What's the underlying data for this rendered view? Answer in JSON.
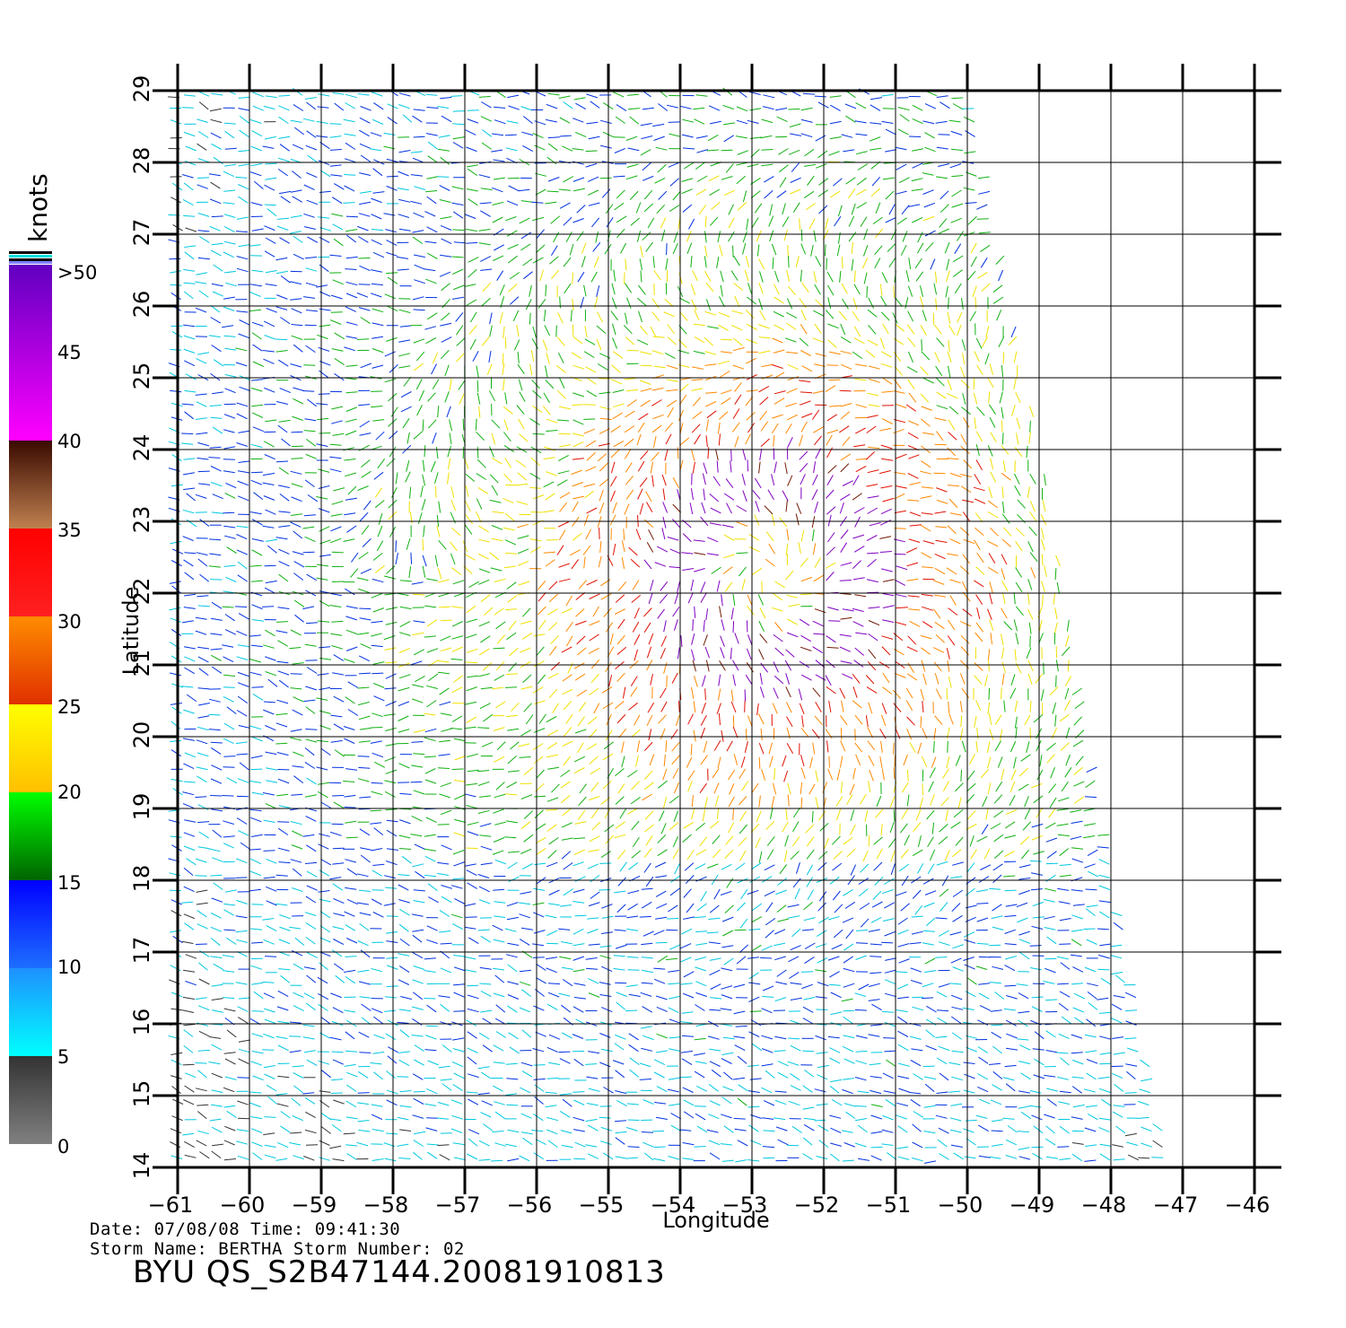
{
  "colorbar": {
    "unit": "knots",
    "labels": [
      ">50",
      "45",
      "40",
      "35",
      "30",
      "25",
      "20",
      "15",
      "10",
      "5",
      "0"
    ],
    "stops": [
      {
        "from": 0,
        "to": 5,
        "top": "#333333",
        "bottom": "#808080"
      },
      {
        "from": 5,
        "to": 10,
        "top": "#1e90ff",
        "bottom": "#00ffff"
      },
      {
        "from": 10,
        "to": 15,
        "top": "#0000ff",
        "bottom": "#1e6fff"
      },
      {
        "from": 15,
        "to": 20,
        "top": "#00ff00",
        "bottom": "#006400"
      },
      {
        "from": 20,
        "to": 25,
        "top": "#ffff00",
        "bottom": "#ffc000"
      },
      {
        "from": 25,
        "to": 30,
        "top": "#ff8c00",
        "bottom": "#e03000"
      },
      {
        "from": 30,
        "to": 35,
        "top": "#ff0000",
        "bottom": "#ff2020"
      },
      {
        "from": 35,
        "to": 40,
        "top": "#3a0a00",
        "bottom": "#c08050"
      },
      {
        "from": 40,
        "to": 50,
        "top": "#6000c0",
        "bottom": "#ff00ff"
      }
    ]
  },
  "map": {
    "lon_ticks": [
      "−61",
      "−60",
      "−59",
      "−58",
      "−57",
      "−56",
      "−55",
      "−54",
      "−53",
      "−52",
      "−51",
      "−50",
      "−49",
      "−48",
      "−47",
      "−46"
    ],
    "lat_ticks": [
      "14",
      "15",
      "16",
      "17",
      "18",
      "19",
      "20",
      "21",
      "22",
      "23",
      "24",
      "25",
      "26",
      "27",
      "28",
      "29"
    ],
    "lon_range": [
      -61,
      -46
    ],
    "lat_range": [
      14,
      29
    ],
    "xlabel": "Longitude",
    "ylabel": "Latitude",
    "storm_center": {
      "lon": -52.7,
      "lat": 22.3
    }
  },
  "meta": {
    "date_line": "Date: 07/08/08   Time: 09:41:30",
    "storm_line": "Storm  Name:  BERTHA    Storm  Number:  02",
    "file_title": "BYU  QS_S2B47144.20081910813"
  }
}
